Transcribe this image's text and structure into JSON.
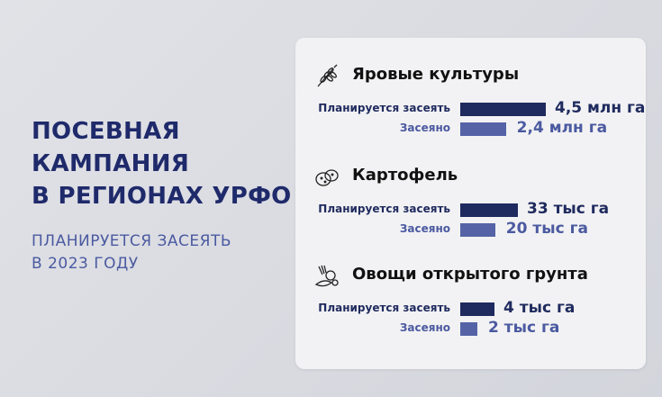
{
  "headline": {
    "line1": "ПОСЕВНАЯ",
    "line2": "КАМПАНИЯ",
    "line3": "В РЕГИОНАХ УРФО"
  },
  "subhead": {
    "line1": "ПЛАНИРУЕТСЯ ЗАСЕЯТЬ",
    "line2": "В 2023 ГОДУ"
  },
  "colors": {
    "planned": "#1f2a5e",
    "sown": "#5563a6",
    "title": "#1f2a6b"
  },
  "chart_data": {
    "type": "bar",
    "orientation": "horizontal",
    "series": [
      {
        "name": "Планируется засеять"
      },
      {
        "name": "Засеяно"
      }
    ],
    "groups": [
      {
        "title": "Яровые культуры",
        "icon": "wheat-icon",
        "unit": "млн га",
        "planned": 4.5,
        "sown": 2.4,
        "planned_label": "4,5 млн га",
        "sown_label": "2,4 млн га"
      },
      {
        "title": "Картофель",
        "icon": "potato-icon",
        "unit": "тыс га",
        "planned": 33,
        "sown": 20,
        "planned_label": "33 тыс га",
        "sown_label": "20 тыс га"
      },
      {
        "title": "Овощи открытого грунта",
        "icon": "vegetables-icon",
        "unit": "тыс га",
        "planned": 4,
        "sown": 2,
        "planned_label": "4 тыс га",
        "sown_label": "2 тыс га"
      }
    ]
  }
}
